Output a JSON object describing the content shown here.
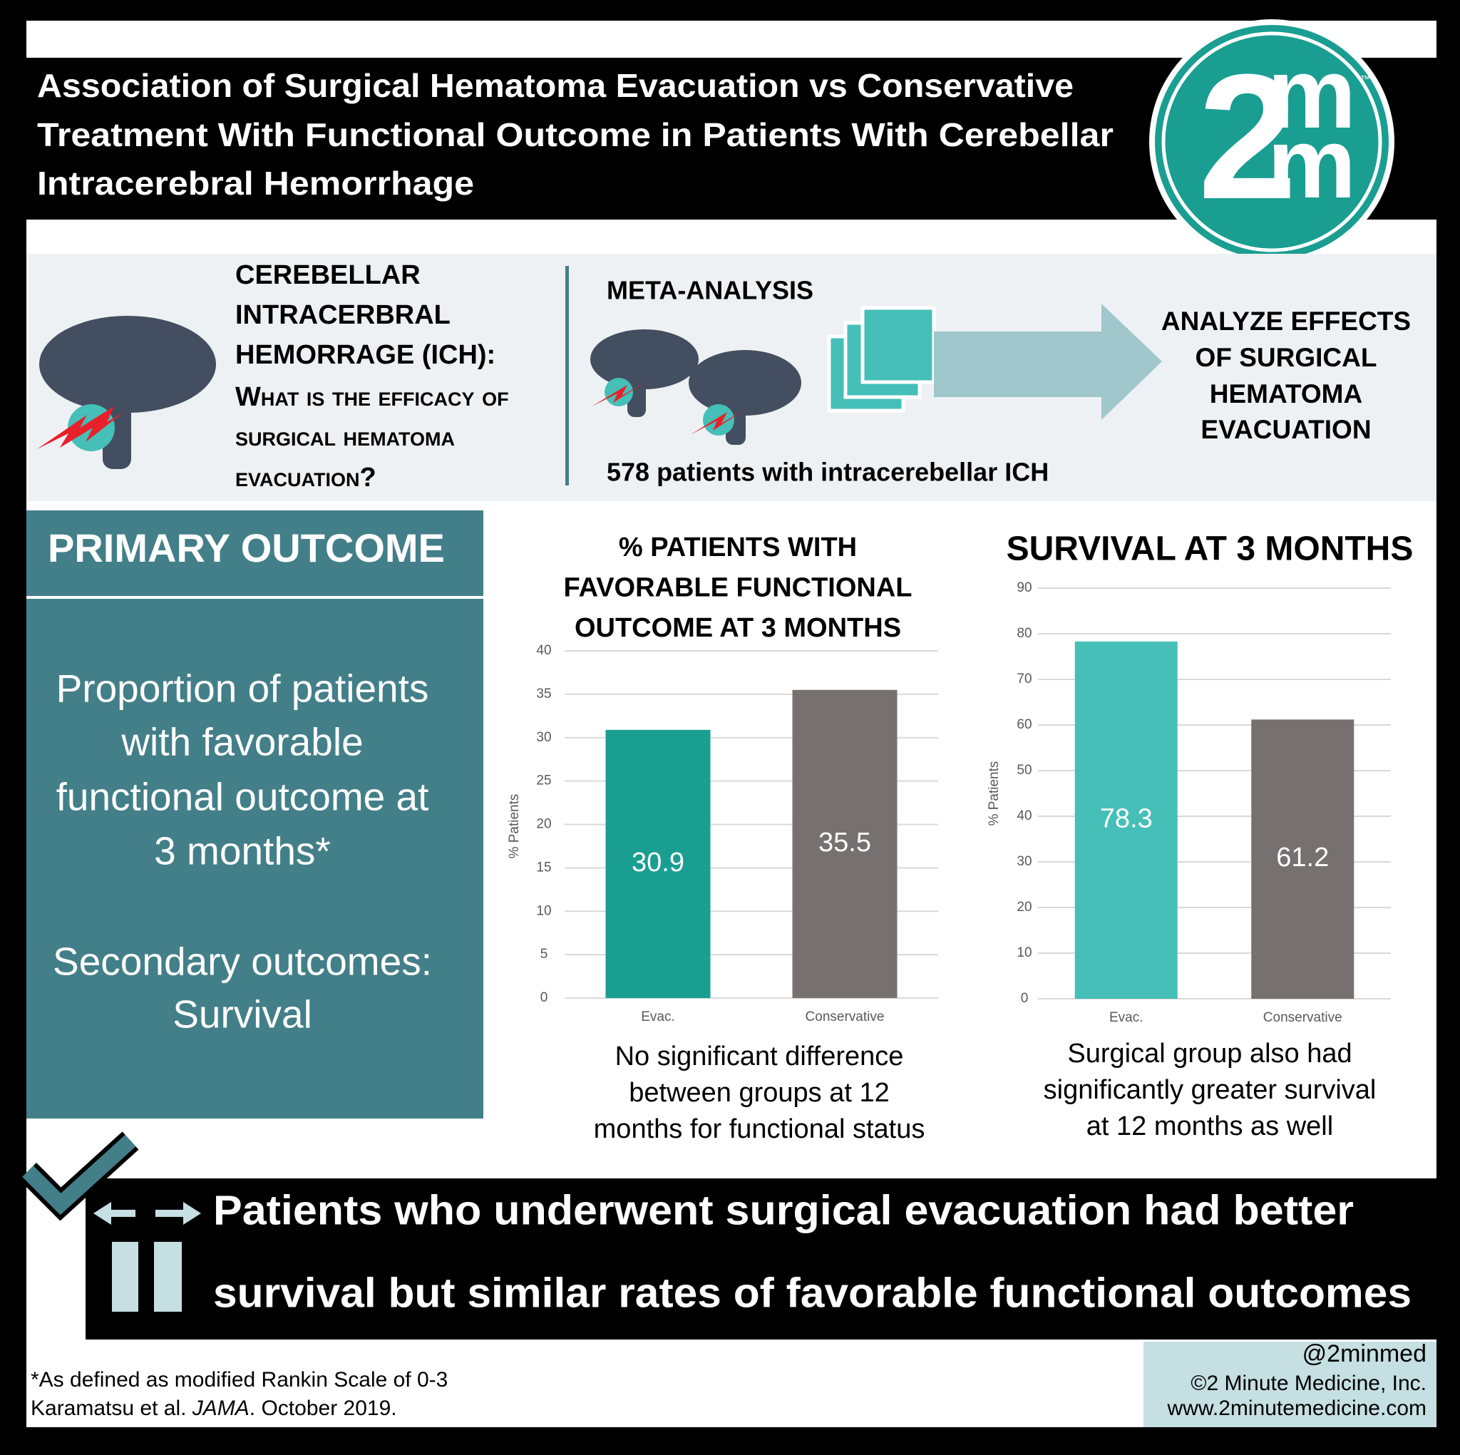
{
  "header": {
    "title": [
      "Association of Surgical Hematoma Evacuation vs Conservative",
      "Treatment With Functional Outcome in Patients With Cerebellar",
      "Intracerebral Hemorrhage"
    ],
    "logo": {
      "digit": "2",
      "letters": [
        "m",
        "m"
      ],
      "mark": "™"
    }
  },
  "background": {
    "heading": [
      "CEREBELLAR",
      "INTRACERBRAL",
      "HEMORRAGE (ICH):",
      "What is the efficacy of",
      "surgical hematoma",
      "evacuation?"
    ]
  },
  "methods": {
    "label": "META-ANALYSIS",
    "patients": "578 patients with intracerebellar ICH",
    "aim": [
      "ANALYZE EFFECTS",
      "OF SURGICAL",
      "HEMATOMA",
      "EVACUATION"
    ]
  },
  "primary_outcome": {
    "heading": "PRIMARY OUTCOME",
    "primary": [
      "Proportion of patients",
      "with favorable",
      "functional outcome at",
      "3 months*"
    ],
    "secondary": [
      "Secondary outcomes:",
      "Survival"
    ]
  },
  "chart_data": [
    {
      "type": "bar",
      "title": [
        "% PATIENTS WITH",
        "FAVORABLE FUNCTIONAL",
        "OUTCOME AT 3 MONTHS"
      ],
      "categories": [
        "Evac.",
        "Conservative"
      ],
      "values": [
        30.9,
        35.5
      ],
      "colors": [
        "#1a9e92",
        "#767170"
      ],
      "ylabel": "% Patients",
      "ylim": [
        0,
        40
      ],
      "yticks": [
        0,
        5,
        10,
        15,
        20,
        25,
        30,
        35,
        40
      ],
      "grid": true,
      "caption": [
        "No significant difference",
        "between groups at 12",
        "months for functional status"
      ]
    },
    {
      "type": "bar",
      "title": [
        "SURVIVAL AT 3 MONTHS"
      ],
      "categories": [
        "Evac.",
        "Conservative"
      ],
      "values": [
        78.3,
        61.2
      ],
      "colors": [
        "#45bfb8",
        "#767170"
      ],
      "ylabel": "% Patients",
      "ylim": [
        0,
        90
      ],
      "yticks": [
        0,
        10,
        20,
        30,
        40,
        50,
        60,
        70,
        80,
        90
      ],
      "grid": true,
      "caption": [
        "Surgical group also had",
        "significantly greater survival",
        "at 12 months as well"
      ]
    }
  ],
  "conclusion": [
    "Patients who underwent surgical evacuation had better",
    "survival but similar rates of favorable functional outcomes"
  ],
  "footnote": "*As defined as modified Rankin Scale of 0-3",
  "citation": [
    "Karamatsu et al. ",
    "JAMA",
    ". October 2019."
  ],
  "credits": [
    "@2minmed",
    "©2 Minute Medicine, Inc.",
    "www.2minutemedicine.com"
  ]
}
